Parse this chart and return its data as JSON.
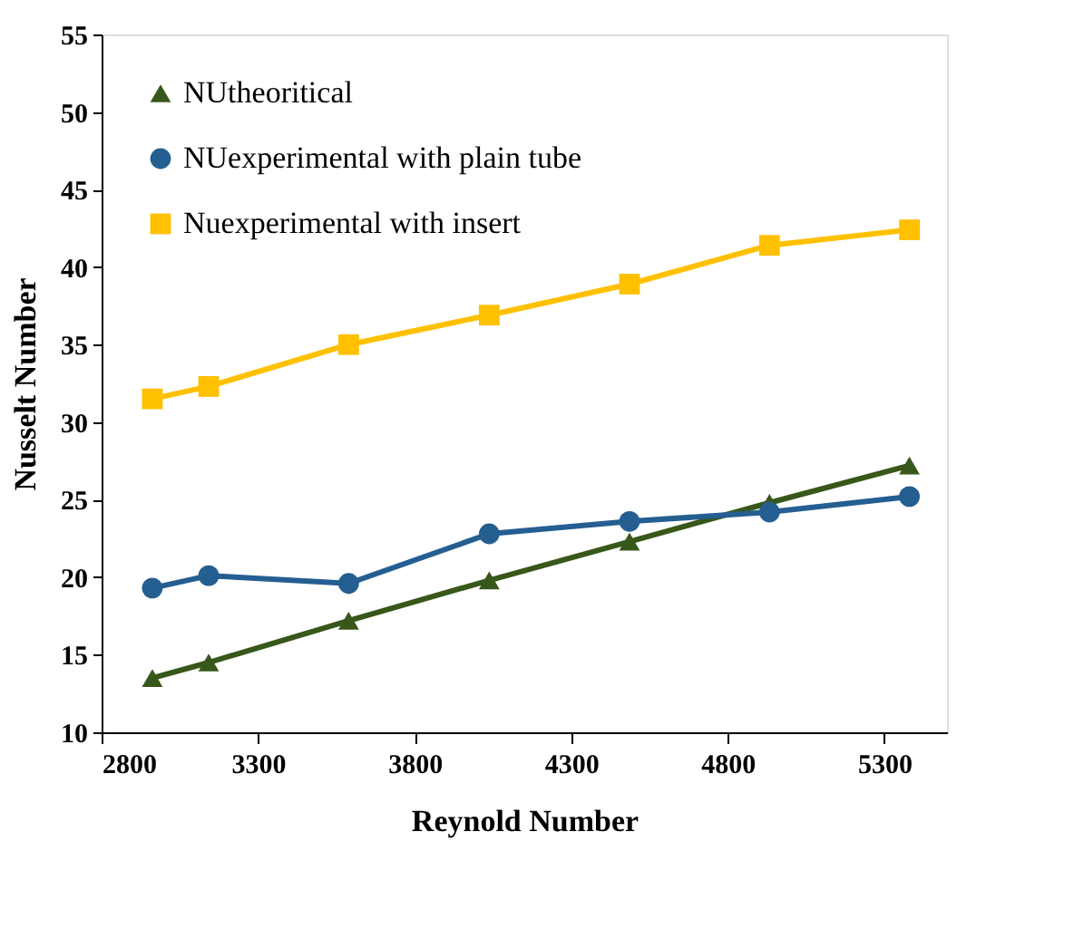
{
  "chart_data": {
    "type": "line",
    "xlabel": "Reynold Number",
    "ylabel": "Nusselt Number",
    "x": [
      2962,
      3142,
      3589,
      4038,
      4486,
      4933,
      5380
    ],
    "series": [
      {
        "name": "NUtheoritical",
        "color": "#38571a",
        "marker": "triangle",
        "values": [
          13.5,
          14.5,
          17.2,
          19.8,
          22.3,
          24.8,
          27.2
        ]
      },
      {
        "name": "NUexperimental with plain tube",
        "color": "#255e91",
        "marker": "circle",
        "values": [
          19.3,
          20.1,
          19.6,
          22.8,
          23.6,
          24.2,
          25.2
        ]
      },
      {
        "name": "Nuexperimental with insert",
        "color": "#ffc000",
        "marker": "square",
        "values": [
          31.5,
          32.3,
          35.0,
          36.9,
          38.9,
          41.4,
          42.4
        ]
      }
    ],
    "xlim": [
      2800,
      5500
    ],
    "xticks": [
      2800,
      3300,
      3800,
      4300,
      4800,
      5300
    ],
    "ylim": [
      10,
      55
    ],
    "yticks": [
      10,
      15,
      20,
      25,
      30,
      35,
      40,
      45,
      50,
      55
    ],
    "grid": false,
    "legend": "top left",
    "line_style": "solid"
  }
}
